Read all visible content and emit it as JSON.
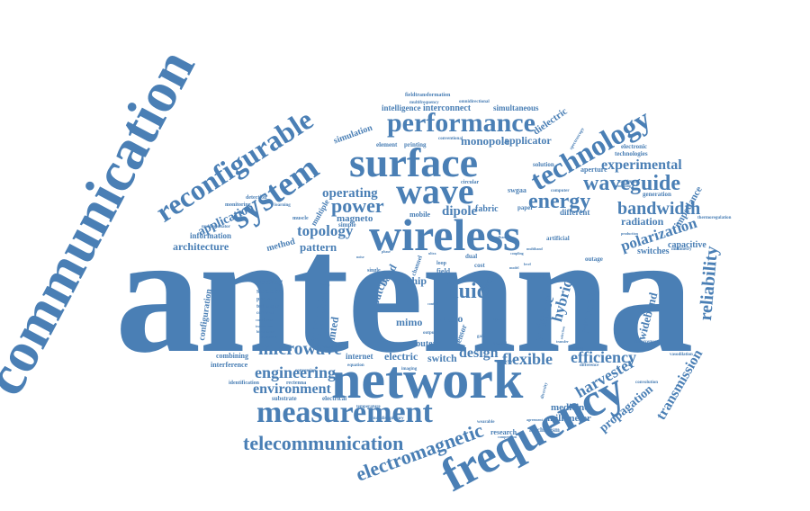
{
  "accent_color": "#4a7fb5",
  "background": "#ffffff",
  "words": {
    "antenna": "antenna",
    "communication": "communication",
    "network": "network",
    "frequency": "frequency",
    "wireless": "wireless",
    "surface": "surface",
    "wave": "wave",
    "system": "system",
    "measurement": "measurement",
    "reconfigurable": "reconfigurable",
    "performance": "performance",
    "technology": "technology",
    "telecommunication": "telecommunication",
    "electromagnetic": "electromagnetic",
    "waveguide": "waveguide",
    "energy": "energy",
    "power": "power",
    "fluid": "fluid",
    "microwave": "microwave",
    "engineering": "engineering",
    "environment": "environment",
    "bandwidth": "bandwidth",
    "experimental": "experimental",
    "polarization": "polarization",
    "reliability": "reliability",
    "efficiency": "efficiency",
    "flexible": "flexible",
    "design": "design",
    "harvester": "harvester",
    "transmission": "transmission",
    "propagation": "propagation",
    "topology": "topology",
    "operating": "operating",
    "application": "application",
    "architecture": "architecture",
    "compact": "compact",
    "dipole": "dipole",
    "radiation": "radiation",
    "pattern": "pattern",
    "magneto": "magneto",
    "printed": "printed",
    "hybrid": "hybrid",
    "science": "science",
    "resonator": "resonator",
    "wideband": "wideband",
    "medicine": "medicine",
    "millimeter": "millimeter",
    "switch": "switch",
    "electric": "electric",
    "internet": "internet",
    "router": "router",
    "mimo": "mimo",
    "patch": "patch",
    "chip": "chip",
    "mesh": "mesh",
    "radio": "radio",
    "band": "band",
    "monopole": "monopole",
    "applicator": "applicator",
    "dielectric": "dielectric",
    "simulation": "simulation",
    "interconnect": "interconnect",
    "simultaneous": "simultaneous",
    "intelligence": "intelligence",
    "capacitive": "capacitive",
    "impedance": "impedance",
    "switches": "switches",
    "fabric": "fabric",
    "different": "different",
    "mobile": "mobile",
    "method": "method",
    "information": "information",
    "configuration": "configuration",
    "feeding": "feeding",
    "sidelobe": "sidelobe",
    "combining": "combining",
    "interference": "interference",
    "identification": "identification",
    "rectenna": "rectenna",
    "electrical": "electrical",
    "substrate": "substrate",
    "research": "research",
    "mechanism": "mechanism",
    "solution": "solution",
    "aperture": "aperture",
    "electronic": "electronic",
    "technologies": "technologies",
    "generation": "generation",
    "outage": "outage",
    "artificial": "artificial",
    "element": "element",
    "printing": "printing",
    "conventional": "conventional",
    "omnidirectional": "omnidirectional",
    "fieldtransformation": "fieldtransformation",
    "multifrequency": "multifrequency",
    "monitoring": "monitoring",
    "detection": "detection",
    "multiresonator": "multiresonator",
    "parasitic": "parasitic",
    "technique": "technique",
    "combined": "combined",
    "correlation": "correlation",
    "transducer": "transducer",
    "biomedicine": "biomedicine",
    "complexity": "complexity",
    "cascaded": "cascaded",
    "temperature": "temperature",
    "multidisciplinary": "multidisciplinary",
    "wearable": "wearable",
    "compression": "compression",
    "reinforcement": "reinforcement",
    "vasodilation": "vasodilation",
    "convolution": "convolution",
    "difference": "difference",
    "thermoregulation": "thermoregulation",
    "millimetry": "millimetry",
    "density": "density",
    "transfer": "transfer",
    "selection": "selection",
    "sensor": "sensor",
    "space": "space",
    "shaped": "shaped",
    "cost": "cost",
    "dual": "dual",
    "field": "field",
    "loop": "loop",
    "result": "result",
    "paper": "paper",
    "circular": "circular",
    "swgaa": "swgaa",
    "channel": "channel",
    "single": "single",
    "muscle": "muscle",
    "simple": "simple",
    "multiple": "multiple",
    "learning": "learning",
    "spectroscopy": "spectroscopy",
    "equation": "equation",
    "conversion": "conversion",
    "imaging": "imaging",
    "output": "output",
    "reactive": "reactive",
    "diversity": "diversity",
    "maximum": "maximum",
    "agreement": "agreement",
    "computer": "computer",
    "processing": "processing",
    "production": "production",
    "multiband": "multiband",
    "broadband": "broadband",
    "coupling": "coupling",
    "control": "control",
    "gain": "gain",
    "level": "level",
    "model": "model",
    "ultra": "ultra",
    "noise": "noise",
    "phase": "phase"
  }
}
